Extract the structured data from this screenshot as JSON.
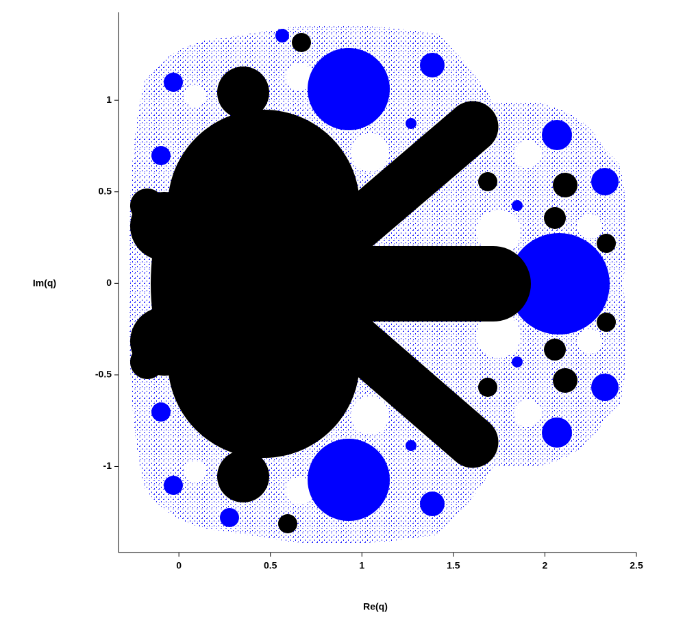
{
  "chart_data": {
    "type": "region",
    "xlabel": "Re(q)",
    "ylabel": "Im(q)",
    "xlim": [
      -0.33,
      2.5
    ],
    "ylim": [
      -1.47,
      1.48
    ],
    "xticks": [
      0,
      0.5,
      1,
      1.5,
      2,
      2.5
    ],
    "yticks": [
      -1,
      -0.5,
      0,
      0.5,
      1
    ],
    "colors": [
      "#000000",
      "#0000ff"
    ]
  }
}
